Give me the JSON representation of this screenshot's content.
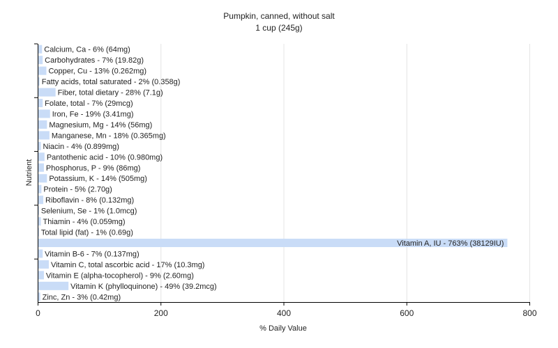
{
  "chart_data": {
    "type": "bar",
    "orientation": "horizontal",
    "title": "Pumpkin, canned, without salt",
    "subtitle": "1 cup (245g)",
    "xlabel": "% Daily Value",
    "ylabel": "Nutrient",
    "xlim": [
      0,
      800
    ],
    "xticks": [
      0,
      200,
      400,
      600,
      800
    ],
    "grid": true,
    "bar_color": "#c9dcf7",
    "categories": [
      "Calcium, Ca",
      "Carbohydrates",
      "Copper, Cu",
      "Fatty acids, total saturated",
      "Fiber, total dietary",
      "Folate, total",
      "Iron, Fe",
      "Magnesium, Mg",
      "Manganese, Mn",
      "Niacin",
      "Pantothenic acid",
      "Phosphorus, P",
      "Potassium, K",
      "Protein",
      "Riboflavin",
      "Selenium, Se",
      "Thiamin",
      "Total lipid (fat)",
      "Vitamin A, IU",
      "Vitamin B-6",
      "Vitamin C, total ascorbic acid",
      "Vitamin E (alpha-tocopherol)",
      "Vitamin K (phylloquinone)",
      "Zinc, Zn"
    ],
    "values": [
      6,
      7,
      13,
      2,
      28,
      7,
      19,
      14,
      18,
      4,
      10,
      9,
      14,
      5,
      8,
      1,
      4,
      1,
      763,
      7,
      17,
      9,
      49,
      3
    ],
    "labels": [
      "Calcium, Ca - 6% (64mg)",
      "Carbohydrates - 7% (19.82g)",
      "Copper, Cu - 13% (0.262mg)",
      "Fatty acids, total saturated - 2% (0.358g)",
      "Fiber, total dietary - 28% (7.1g)",
      "Folate, total - 7% (29mcg)",
      "Iron, Fe - 19% (3.41mg)",
      "Magnesium, Mg - 14% (56mg)",
      "Manganese, Mn - 18% (0.365mg)",
      "Niacin - 4% (0.899mg)",
      "Pantothenic acid - 10% (0.980mg)",
      "Phosphorus, P - 9% (86mg)",
      "Potassium, K - 14% (505mg)",
      "Protein - 5% (2.70g)",
      "Riboflavin - 8% (0.132mg)",
      "Selenium, Se - 1% (1.0mcg)",
      "Thiamin - 4% (0.059mg)",
      "Total lipid (fat) - 1% (0.69g)",
      "Vitamin A, IU - 763% (38129IU)",
      "Vitamin B-6 - 7% (0.137mg)",
      "Vitamin C, total ascorbic acid - 17% (10.3mg)",
      "Vitamin E (alpha-tocopherol) - 9% (2.60mg)",
      "Vitamin K (phylloquinone) - 49% (39.2mcg)",
      "Zinc, Zn - 3% (0.42mg)"
    ]
  }
}
